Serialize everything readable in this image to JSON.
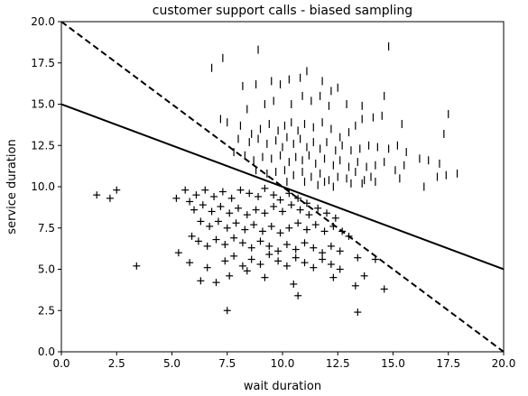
{
  "chart_data": {
    "type": "scatter",
    "title": "customer support calls - biased sampling",
    "xlabel": "wait duration",
    "ylabel": "service duration",
    "xlim": [
      0,
      20
    ],
    "ylim": [
      0,
      20
    ],
    "xticks": [
      "0.0",
      "2.5",
      "5.0",
      "7.5",
      "10.0",
      "12.5",
      "15.0",
      "17.5",
      "20.0"
    ],
    "yticks": [
      "0.0",
      "2.5",
      "5.0",
      "7.5",
      "10.0",
      "12.5",
      "15.0",
      "17.5",
      "20.0"
    ],
    "grid": false,
    "lines": [
      {
        "style": "dashed",
        "color": "#000000",
        "x": [
          0,
          20
        ],
        "y": [
          20,
          0
        ]
      },
      {
        "style": "solid",
        "color": "#000000",
        "x": [
          0,
          20
        ],
        "y": [
          15,
          5
        ]
      }
    ],
    "series": [
      {
        "marker": "vline",
        "color": "#000000",
        "points": [
          [
            6.8,
            17.2
          ],
          [
            7.3,
            17.8
          ],
          [
            8.9,
            18.3
          ],
          [
            14.8,
            18.5
          ],
          [
            8.2,
            16.1
          ],
          [
            8.8,
            16.2
          ],
          [
            9.5,
            16.4
          ],
          [
            9.9,
            16.2
          ],
          [
            10.3,
            16.5
          ],
          [
            10.8,
            16.6
          ],
          [
            11.1,
            17.0
          ],
          [
            11.8,
            16.4
          ],
          [
            12.2,
            15.8
          ],
          [
            12.5,
            16.0
          ],
          [
            8.4,
            14.7
          ],
          [
            9.2,
            15.0
          ],
          [
            9.6,
            15.2
          ],
          [
            10.4,
            15.0
          ],
          [
            10.9,
            15.5
          ],
          [
            11.3,
            15.2
          ],
          [
            11.7,
            15.5
          ],
          [
            12.1,
            14.9
          ],
          [
            12.9,
            15.0
          ],
          [
            13.6,
            14.9
          ],
          [
            14.6,
            15.5
          ],
          [
            7.2,
            14.1
          ],
          [
            7.5,
            13.9
          ],
          [
            8.1,
            13.7
          ],
          [
            8.6,
            13.2
          ],
          [
            9.0,
            13.5
          ],
          [
            9.4,
            13.8
          ],
          [
            9.8,
            13.4
          ],
          [
            10.1,
            13.7
          ],
          [
            10.4,
            13.9
          ],
          [
            10.7,
            13.4
          ],
          [
            11.0,
            13.8
          ],
          [
            11.4,
            13.6
          ],
          [
            11.8,
            13.9
          ],
          [
            12.2,
            13.5
          ],
          [
            12.6,
            13.0
          ],
          [
            13.0,
            13.3
          ],
          [
            13.3,
            13.7
          ],
          [
            13.6,
            14.1
          ],
          [
            14.1,
            14.2
          ],
          [
            14.5,
            14.3
          ],
          [
            15.4,
            13.8
          ],
          [
            17.3,
            13.2
          ],
          [
            17.5,
            14.4
          ],
          [
            8.0,
            12.9
          ],
          [
            8.5,
            12.7
          ],
          [
            8.9,
            12.9
          ],
          [
            9.3,
            12.6
          ],
          [
            9.7,
            12.8
          ],
          [
            10.0,
            12.4
          ],
          [
            10.2,
            13.0
          ],
          [
            10.5,
            12.6
          ],
          [
            10.8,
            12.9
          ],
          [
            11.1,
            12.4
          ],
          [
            11.4,
            12.7
          ],
          [
            11.7,
            12.3
          ],
          [
            12.0,
            12.7
          ],
          [
            12.4,
            12.2
          ],
          [
            12.7,
            12.5
          ],
          [
            13.1,
            12.2
          ],
          [
            13.5,
            12.3
          ],
          [
            13.9,
            12.5
          ],
          [
            14.3,
            12.4
          ],
          [
            14.8,
            12.3
          ],
          [
            15.2,
            12.5
          ],
          [
            15.6,
            12.1
          ],
          [
            16.2,
            11.7
          ],
          [
            16.6,
            11.6
          ],
          [
            17.1,
            11.4
          ],
          [
            7.8,
            12.1
          ],
          [
            8.3,
            11.9
          ],
          [
            8.7,
            11.6
          ],
          [
            9.1,
            11.8
          ],
          [
            9.5,
            11.7
          ],
          [
            9.9,
            11.9
          ],
          [
            10.3,
            11.5
          ],
          [
            10.6,
            11.8
          ],
          [
            10.9,
            11.6
          ],
          [
            11.2,
            11.9
          ],
          [
            11.5,
            11.4
          ],
          [
            11.9,
            11.7
          ],
          [
            12.3,
            11.3
          ],
          [
            12.6,
            11.6
          ],
          [
            13.0,
            11.2
          ],
          [
            13.4,
            11.5
          ],
          [
            13.8,
            11.2
          ],
          [
            14.2,
            11.3
          ],
          [
            14.6,
            11.5
          ],
          [
            15.1,
            11.0
          ],
          [
            15.5,
            11.3
          ],
          [
            8.8,
            11.0
          ],
          [
            9.3,
            10.8
          ],
          [
            9.7,
            10.9
          ],
          [
            10.1,
            11.0
          ],
          [
            10.5,
            10.7
          ],
          [
            10.9,
            10.9
          ],
          [
            11.3,
            10.6
          ],
          [
            11.7,
            10.8
          ],
          [
            12.1,
            10.4
          ],
          [
            12.5,
            10.6
          ],
          [
            12.9,
            10.5
          ],
          [
            13.3,
            10.9
          ],
          [
            13.7,
            10.4
          ],
          [
            14.2,
            10.3
          ],
          [
            16.4,
            10.0
          ],
          [
            17.0,
            10.6
          ],
          [
            17.4,
            10.7
          ],
          [
            17.9,
            10.8
          ],
          [
            10.2,
            10.3
          ],
          [
            11.0,
            10.3
          ],
          [
            11.9,
            10.3
          ],
          [
            13.1,
            10.2
          ],
          [
            13.6,
            10.2
          ],
          [
            11.6,
            10.1
          ],
          [
            12.3,
            10.0
          ],
          [
            14.0,
            10.6
          ],
          [
            15.3,
            10.5
          ]
        ]
      },
      {
        "marker": "plus",
        "color": "#000000",
        "points": [
          [
            1.6,
            9.5
          ],
          [
            2.2,
            9.3
          ],
          [
            2.5,
            9.8
          ],
          [
            3.4,
            5.2
          ],
          [
            5.2,
            9.3
          ],
          [
            5.6,
            9.8
          ],
          [
            5.8,
            9.1
          ],
          [
            6.1,
            9.5
          ],
          [
            6.5,
            9.8
          ],
          [
            6.9,
            9.4
          ],
          [
            7.3,
            9.7
          ],
          [
            7.7,
            9.3
          ],
          [
            8.1,
            9.8
          ],
          [
            8.5,
            9.6
          ],
          [
            8.9,
            9.4
          ],
          [
            9.2,
            9.9
          ],
          [
            9.6,
            9.5
          ],
          [
            9.9,
            9.2
          ],
          [
            10.3,
            9.6
          ],
          [
            10.7,
            9.3
          ],
          [
            11.1,
            9.0
          ],
          [
            6.0,
            8.6
          ],
          [
            6.4,
            8.9
          ],
          [
            6.8,
            8.5
          ],
          [
            7.2,
            8.8
          ],
          [
            7.6,
            8.4
          ],
          [
            8.0,
            8.7
          ],
          [
            8.4,
            8.3
          ],
          [
            8.8,
            8.6
          ],
          [
            9.2,
            8.4
          ],
          [
            9.6,
            8.8
          ],
          [
            10.0,
            8.5
          ],
          [
            10.4,
            8.9
          ],
          [
            10.8,
            8.6
          ],
          [
            11.2,
            8.3
          ],
          [
            11.6,
            8.7
          ],
          [
            12.0,
            8.4
          ],
          [
            12.4,
            8.1
          ],
          [
            6.3,
            7.9
          ],
          [
            6.7,
            7.6
          ],
          [
            7.1,
            7.9
          ],
          [
            7.5,
            7.5
          ],
          [
            7.9,
            7.8
          ],
          [
            8.3,
            7.4
          ],
          [
            8.7,
            7.7
          ],
          [
            9.1,
            7.3
          ],
          [
            9.5,
            7.6
          ],
          [
            9.9,
            7.2
          ],
          [
            10.3,
            7.5
          ],
          [
            10.7,
            7.8
          ],
          [
            11.1,
            7.4
          ],
          [
            11.5,
            7.7
          ],
          [
            11.9,
            7.3
          ],
          [
            12.3,
            7.6
          ],
          [
            12.7,
            7.3
          ],
          [
            13.0,
            7.0
          ],
          [
            5.9,
            7.0
          ],
          [
            6.2,
            6.7
          ],
          [
            6.6,
            6.4
          ],
          [
            7.0,
            6.8
          ],
          [
            7.4,
            6.5
          ],
          [
            7.8,
            6.9
          ],
          [
            8.2,
            6.6
          ],
          [
            8.6,
            6.3
          ],
          [
            9.0,
            6.7
          ],
          [
            9.4,
            6.4
          ],
          [
            9.8,
            6.1
          ],
          [
            10.2,
            6.5
          ],
          [
            10.6,
            6.2
          ],
          [
            11.0,
            6.6
          ],
          [
            11.4,
            6.3
          ],
          [
            11.8,
            6.0
          ],
          [
            12.2,
            6.4
          ],
          [
            12.6,
            6.1
          ],
          [
            5.3,
            6.0
          ],
          [
            5.8,
            5.4
          ],
          [
            6.6,
            5.1
          ],
          [
            7.4,
            5.5
          ],
          [
            7.8,
            5.8
          ],
          [
            8.2,
            5.2
          ],
          [
            8.6,
            5.6
          ],
          [
            9.0,
            5.3
          ],
          [
            9.4,
            5.9
          ],
          [
            9.8,
            5.5
          ],
          [
            10.2,
            5.2
          ],
          [
            10.6,
            5.7
          ],
          [
            11.0,
            5.4
          ],
          [
            11.4,
            5.1
          ],
          [
            11.8,
            5.6
          ],
          [
            12.2,
            5.3
          ],
          [
            12.6,
            5.0
          ],
          [
            13.4,
            5.7
          ],
          [
            14.2,
            5.6
          ],
          [
            6.3,
            4.3
          ],
          [
            7.0,
            4.2
          ],
          [
            7.6,
            4.6
          ],
          [
            8.4,
            4.9
          ],
          [
            9.2,
            4.5
          ],
          [
            10.5,
            4.1
          ],
          [
            12.3,
            4.5
          ],
          [
            13.3,
            4.0
          ],
          [
            13.7,
            4.6
          ],
          [
            14.6,
            3.8
          ],
          [
            10.7,
            3.4
          ],
          [
            7.5,
            2.5
          ],
          [
            13.4,
            2.4
          ]
        ]
      }
    ]
  }
}
